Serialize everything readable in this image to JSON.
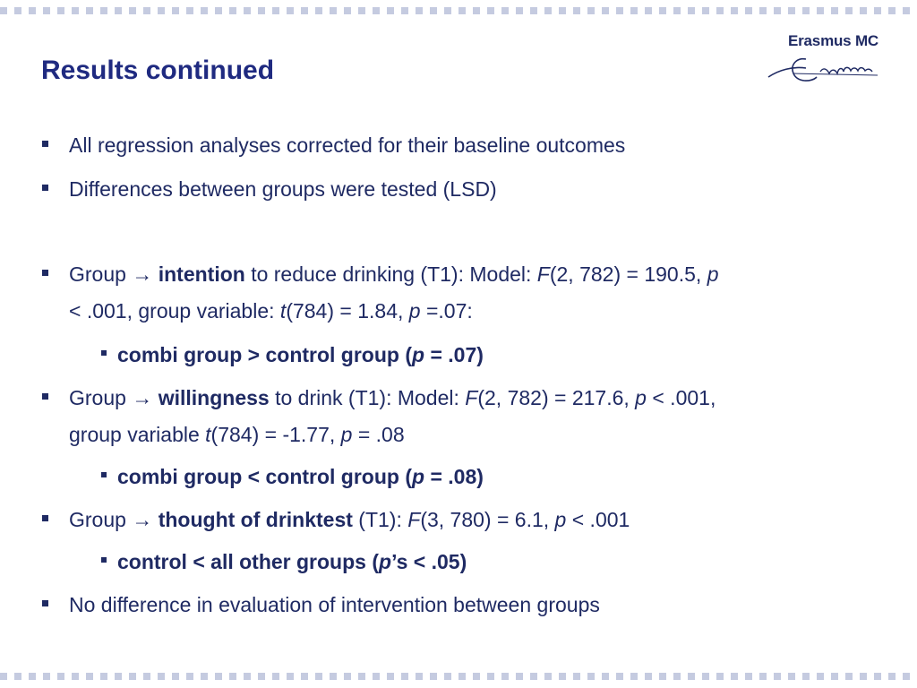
{
  "title": "Results continued",
  "logo": {
    "text": "Erasmus MC",
    "signature": "Erafmus"
  },
  "bullets": {
    "b1": "All regression analyses corrected for their baseline outcomes",
    "b2": "Differences between groups were tested (LSD)",
    "b3": {
      "prefix": "Group ",
      "arrow": "→",
      "term": "intention",
      "rest1": " to reduce drinking (T1): Model: ",
      "F": "F",
      "stat1": "(2, 782) = 190.5, ",
      "p1": "p",
      "line2a": "< .001, group variable: ",
      "t": "t",
      "line2b": "(784) = 1.84, ",
      "p2": "p",
      "line2c": " =.07:"
    },
    "b3sub": {
      "a": "combi group > control group (",
      "p": "p",
      "b": " = .07)"
    },
    "b4": {
      "prefix": "Group ",
      "arrow": "→",
      "term": "willingness",
      "rest1": " to drink (T1): Model: ",
      "F": "F",
      "stat1": "(2, 782) = 217.6, ",
      "p1": "p",
      "stat2": " < .001,",
      "line2a": "group variable ",
      "t": "t",
      "line2b": "(784) = -1.77, ",
      "p2": "p",
      "line2c": " = .08"
    },
    "b4sub": {
      "a": "combi group < control group (",
      "p": "p",
      "b": " = .08)"
    },
    "b5": {
      "prefix": "Group ",
      "arrow": "→",
      "term": "thought of drinktest",
      "rest1": " (T1): ",
      "F": "F",
      "stat1": "(3, 780) = 6.1, ",
      "p1": "p",
      "stat2": " < .001"
    },
    "b5sub": {
      "a": "control < all other groups (",
      "p": "p",
      "b": "’s < .05)"
    },
    "b6": "No difference in evaluation of intervention between groups"
  }
}
